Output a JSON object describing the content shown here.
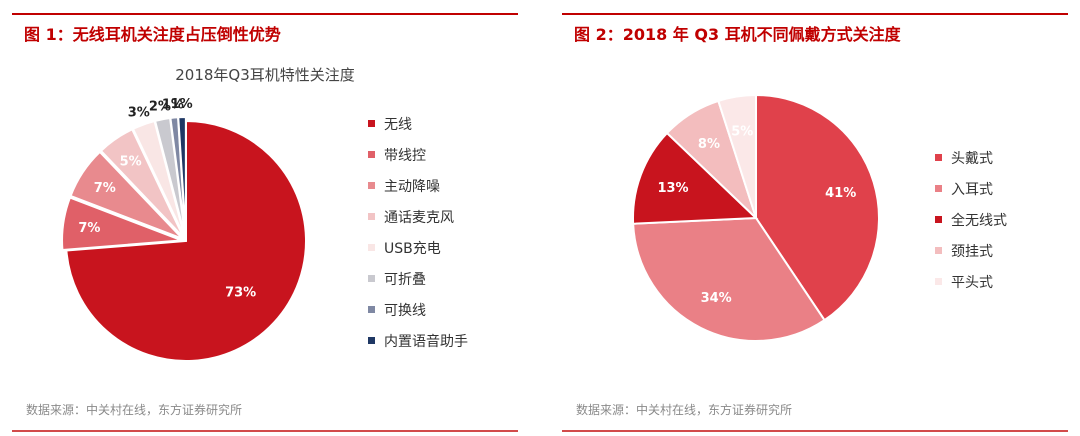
{
  "panels": [
    {
      "figure_title": "图 1：无线耳机关注度占压倒性优势",
      "source": "数据来源：中关村在线，东方证券研究所",
      "chart_title": "2018年Q3耳机特性关注度"
    },
    {
      "figure_title": "图 2：2018 年 Q3 耳机不同佩戴方式关注度",
      "source": "数据来源：中关村在线，东方证券研究所",
      "chart_title": ""
    }
  ],
  "chart_data": [
    {
      "type": "pie",
      "title": "2018年Q3耳机特性关注度",
      "categories": [
        "无线",
        "带线控",
        "主动降噪",
        "通话麦克风",
        "USB充电",
        "可折叠",
        "可换线",
        "内置语音助手"
      ],
      "values": [
        73,
        7,
        7,
        5,
        3,
        2,
        1,
        1
      ],
      "labels": [
        "73%",
        "7%",
        "7%",
        "5%",
        "3%",
        "2%",
        "1%",
        "1%"
      ],
      "colors": [
        "#c8141e",
        "#e06068",
        "#e88a8e",
        "#f2c4c5",
        "#f9e6e5",
        "#c9c9cf",
        "#7f88a3",
        "#1f3864"
      ],
      "legend_position": "right"
    },
    {
      "type": "pie",
      "title": "",
      "categories": [
        "头戴式",
        "入耳式",
        "全无线式",
        "颈挂式",
        "平头式"
      ],
      "values": [
        41,
        34,
        13,
        8,
        5
      ],
      "labels": [
        "41%",
        "34%",
        "13%",
        "8%",
        "5%"
      ],
      "colors": [
        "#e0414b",
        "#ea8086",
        "#c8141e",
        "#f3bdbe",
        "#fbe8e8"
      ],
      "legend_position": "right"
    }
  ]
}
